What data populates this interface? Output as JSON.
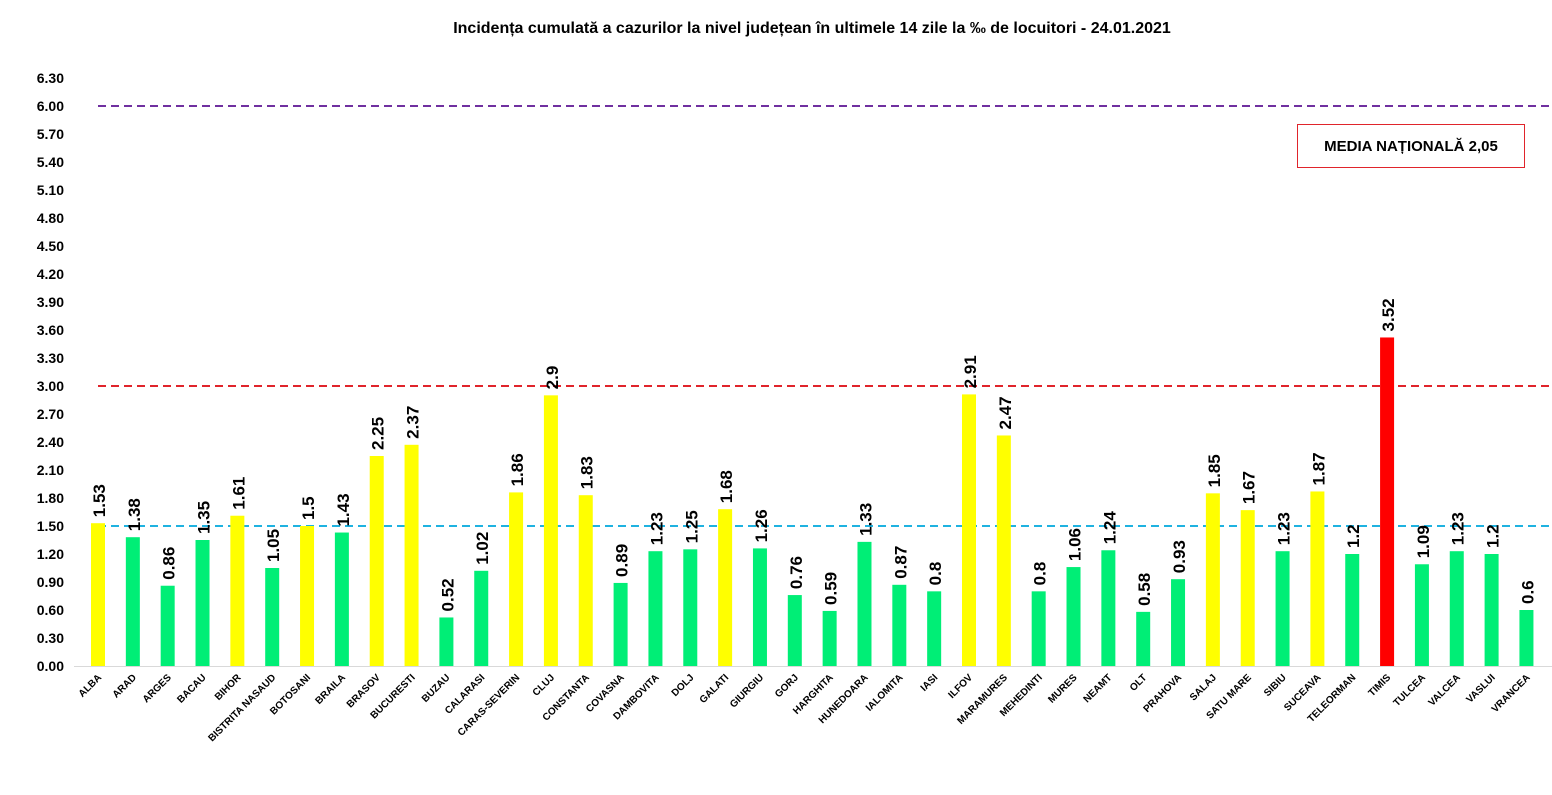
{
  "chart_data": {
    "type": "bar",
    "title": "Incidența cumulată a cazurilor la nivel județean în ultimele 14 zile la ‰ de locuitori - 24.01.2021",
    "xlabel": "",
    "ylabel": "",
    "ylim": [
      0,
      6.3
    ],
    "yticks": [
      "0.00",
      "0.30",
      "0.60",
      "0.90",
      "1.20",
      "1.50",
      "1.80",
      "2.10",
      "2.40",
      "2.70",
      "3.00",
      "3.30",
      "3.60",
      "3.90",
      "4.20",
      "4.50",
      "4.80",
      "5.10",
      "5.40",
      "5.70",
      "6.00",
      "6.30"
    ],
    "grid": false,
    "categories": [
      "ALBA",
      "ARAD",
      "ARGES",
      "BACAU",
      "BIHOR",
      "BISTRITA NASAUD",
      "BOTOSANI",
      "BRAILA",
      "BRASOV",
      "BUCURESTI",
      "BUZAU",
      "CALARASI",
      "CARAS-SEVERIN",
      "CLUJ",
      "CONSTANTA",
      "COVASNA",
      "DAMBOVITA",
      "DOLJ",
      "GALATI",
      "GIURGIU",
      "GORJ",
      "HARGHITA",
      "HUNEDOARA",
      "IALOMITA",
      "IASI",
      "ILFOV",
      "MARAMURES",
      "MEHEDINTI",
      "MURES",
      "NEAMT",
      "OLT",
      "PRAHOVA",
      "SALAJ",
      "SATU MARE",
      "SIBIU",
      "SUCEAVA",
      "TELEORMAN",
      "TIMIS",
      "TULCEA",
      "VALCEA",
      "VASLUI",
      "VRANCEA"
    ],
    "values": [
      1.53,
      1.38,
      0.86,
      1.35,
      1.61,
      1.05,
      1.5,
      1.43,
      2.25,
      2.37,
      0.52,
      1.02,
      1.86,
      2.9,
      1.83,
      0.89,
      1.23,
      1.25,
      1.68,
      1.26,
      0.76,
      0.59,
      1.33,
      0.87,
      0.8,
      2.91,
      2.47,
      0.8,
      1.06,
      1.24,
      0.58,
      0.93,
      1.85,
      1.67,
      1.23,
      1.87,
      1.2,
      3.52,
      1.09,
      1.23,
      1.2,
      0.6
    ],
    "labels": [
      "1.53",
      "1.38",
      "0.86",
      "1.35",
      "1.61",
      "1.05",
      "1.5",
      "1.43",
      "2.25",
      "2.37",
      "0.52",
      "1.02",
      "1.86",
      "2.9",
      "1.83",
      "0.89",
      "1.23",
      "1.25",
      "1.68",
      "1.26",
      "0.76",
      "0.59",
      "1.33",
      "0.87",
      "0.8",
      "2.91",
      "2.47",
      "0.8",
      "1.06",
      "1.24",
      "0.58",
      "0.93",
      "1.85",
      "1.67",
      "1.23",
      "1.87",
      "1.2",
      "3.52",
      "1.09",
      "1.23",
      "1.2",
      "0.6"
    ],
    "bar_colors": [
      "#ffff00",
      "#00ee76",
      "#00ee76",
      "#00ee76",
      "#ffff00",
      "#00ee76",
      "#ffff00",
      "#00ee76",
      "#ffff00",
      "#ffff00",
      "#00ee76",
      "#00ee76",
      "#ffff00",
      "#ffff00",
      "#ffff00",
      "#00ee76",
      "#00ee76",
      "#00ee76",
      "#ffff00",
      "#00ee76",
      "#00ee76",
      "#00ee76",
      "#00ee76",
      "#00ee76",
      "#00ee76",
      "#ffff00",
      "#ffff00",
      "#00ee76",
      "#00ee76",
      "#00ee76",
      "#00ee76",
      "#00ee76",
      "#ffff00",
      "#ffff00",
      "#00ee76",
      "#ffff00",
      "#00ee76",
      "#ff0000",
      "#00ee76",
      "#00ee76",
      "#00ee76",
      "#00ee76"
    ],
    "reference_lines": [
      {
        "value": 6.0,
        "color": "#7030a0"
      },
      {
        "value": 3.0,
        "color": "#e0242b"
      },
      {
        "value": 1.5,
        "color": "#1fb2e0"
      }
    ],
    "annotation": "MEDIA NAȚIONALĂ  2,05",
    "annotation_border_color": "#e0242b"
  }
}
